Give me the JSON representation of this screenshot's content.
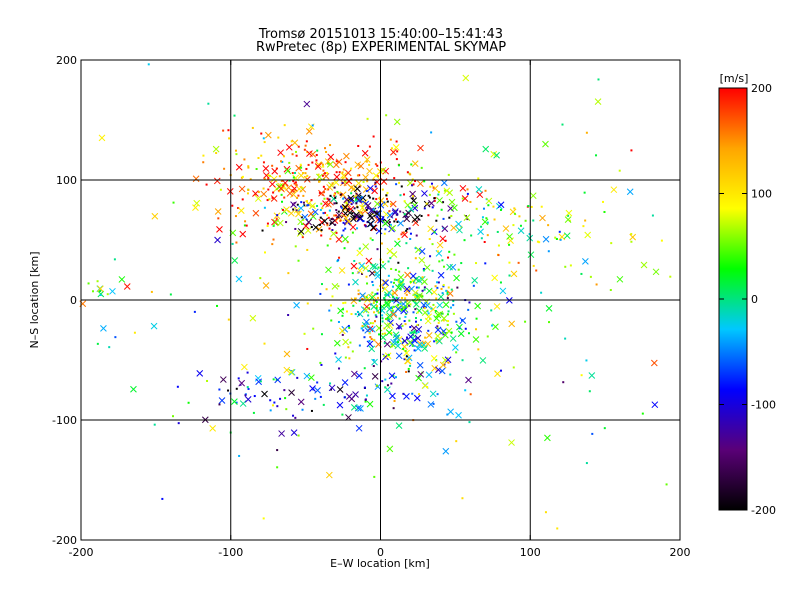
{
  "chart_data": {
    "type": "scatter",
    "title": "Tromsø 20151013 15:40:00–15:41:43",
    "subtitle": "RwPretec (8p) EXPERIMENTAL SKYMAP",
    "xlabel": "E–W location [km]",
    "ylabel": "N–S location [km]",
    "xlim": [
      -200,
      200
    ],
    "ylim": [
      -200,
      200
    ],
    "xticks": [
      "-200",
      "-100",
      "0",
      "100",
      "200"
    ],
    "yticks": [
      "-200",
      "-100",
      "0",
      "100",
      "200"
    ],
    "grid": true,
    "colorbar": {
      "label": "[m/s]",
      "range": [
        -200,
        200
      ],
      "ticks": [
        "200",
        "100",
        "0",
        "-100",
        "-200"
      ],
      "colormap": [
        "#000000",
        "#5a0078",
        "#0000ff",
        "#00c8ff",
        "#00ff00",
        "#ffff00",
        "#ffa500",
        "#ff0000"
      ]
    },
    "clusters": [
      {
        "cx": -40,
        "cy": 95,
        "sx": 35,
        "sy": 22,
        "n": 380,
        "v": 150
      },
      {
        "cx": -10,
        "cy": 72,
        "sx": 30,
        "sy": 10,
        "n": 180,
        "v": -150
      },
      {
        "cx": 15,
        "cy": -10,
        "sx": 22,
        "sy": 22,
        "n": 420,
        "v": 15
      },
      {
        "cx": -45,
        "cy": -80,
        "sx": 45,
        "sy": 15,
        "n": 120,
        "v": -80
      },
      {
        "cx": 60,
        "cy": 60,
        "sx": 45,
        "sy": 25,
        "n": 140,
        "v": 60
      },
      {
        "cx": -180,
        "cy": 12,
        "sx": 8,
        "sy": 8,
        "n": 12,
        "v": 60
      },
      {
        "cx": 0,
        "cy": 0,
        "sx": 110,
        "sy": 90,
        "n": 240,
        "v": 50
      }
    ]
  }
}
